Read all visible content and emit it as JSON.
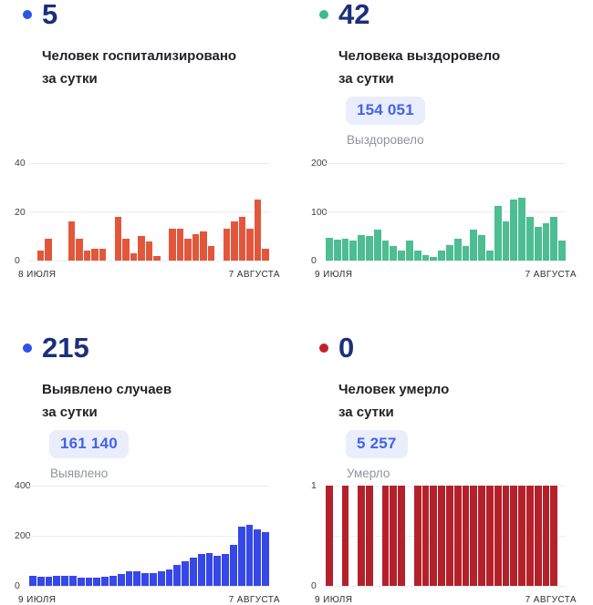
{
  "theme": {
    "number-color": "#1B2F7D",
    "badge-bg": "#E9EDFC",
    "badge-text": "#4263EA",
    "grid-color": "#ECECEC",
    "tick-color": "#3F3F44",
    "date-color": "#2E2E33",
    "subtitle-color": "#212226",
    "muted-label-color": "#8F949D",
    "background": "#FFFFFF"
  },
  "cards": [
    {
      "dot_color": "#2E56E0",
      "daily_value": "5",
      "subtitle_line1": "Человек госпитализировано",
      "subtitle_line2": "за сутки"
    },
    {
      "dot_color": "#3DBA8C",
      "daily_value": "42",
      "subtitle_line1": "Человека выздоровело",
      "subtitle_line2": "за сутки",
      "total_value": "154 051",
      "total_label": "Выздоровело"
    },
    {
      "dot_color": "#3050E8",
      "daily_value": "215",
      "subtitle_line1": "Выявлено случаев",
      "subtitle_line2": "за сутки",
      "total_value": "161 140",
      "total_label": "Выявлено"
    },
    {
      "dot_color": "#C0222C",
      "daily_value": "0",
      "subtitle_line1": "Человек умерло",
      "subtitle_line2": "за сутки",
      "total_value": "5 257",
      "total_label": "Умерло"
    }
  ],
  "chart_data": [
    {
      "type": "bar",
      "title": "Человек госпитализировано за сутки",
      "color": "#E2573B",
      "ylim": [
        0,
        40
      ],
      "yticks": [
        "40",
        "20",
        "0"
      ],
      "grid": true,
      "x_start_label": "8 ИЮЛЯ",
      "x_end_label": "7 АВГУСТА",
      "values": [
        0,
        4,
        9,
        0,
        0,
        16,
        9,
        4,
        5,
        5,
        0,
        18,
        9,
        3,
        10,
        8,
        2,
        0,
        13,
        13,
        9,
        11,
        12,
        6,
        0,
        13,
        16,
        18,
        13,
        25,
        5
      ]
    },
    {
      "type": "bar",
      "title": "Человека выздоровело за сутки",
      "color": "#4DBD92",
      "ylim": [
        0,
        200
      ],
      "yticks": [
        "200",
        "100",
        "0"
      ],
      "grid": true,
      "x_start_label": "9 ИЮЛЯ",
      "x_end_label": "7 АВГУСТА",
      "values": [
        46,
        43,
        45,
        41,
        52,
        50,
        64,
        41,
        30,
        20,
        41,
        20,
        12,
        8,
        21,
        32,
        45,
        30,
        64,
        53,
        20,
        112,
        80,
        125,
        129,
        90,
        70,
        77,
        90,
        42
      ]
    },
    {
      "type": "bar",
      "title": "Выявлено случаев за сутки",
      "color": "#3648E8",
      "ylim": [
        0,
        400
      ],
      "yticks": [
        "400",
        "200",
        "0"
      ],
      "grid": true,
      "x_start_label": "9 ИЮЛЯ",
      "x_end_label": "7 АВГУСТА",
      "values": [
        39,
        36,
        36,
        39,
        41,
        39,
        34,
        34,
        32,
        36,
        41,
        48,
        57,
        60,
        52,
        51,
        58,
        65,
        85,
        98,
        114,
        128,
        132,
        121,
        126,
        163,
        237,
        245,
        226,
        215
      ]
    },
    {
      "type": "bar",
      "title": "Человек умерло за сутки",
      "color": "#B5212B",
      "ylim": [
        0,
        1
      ],
      "yticks": [
        "1",
        "0"
      ],
      "grid": true,
      "x_start_label": "9 ИЮЛЯ",
      "x_end_label": "7 АВГУСТА",
      "values": [
        1,
        0,
        1,
        0,
        1,
        1,
        0,
        1,
        1,
        1,
        0,
        1,
        1,
        1,
        1,
        1,
        1,
        1,
        1,
        1,
        1,
        1,
        1,
        1,
        1,
        1,
        1,
        1,
        1,
        0
      ]
    }
  ]
}
